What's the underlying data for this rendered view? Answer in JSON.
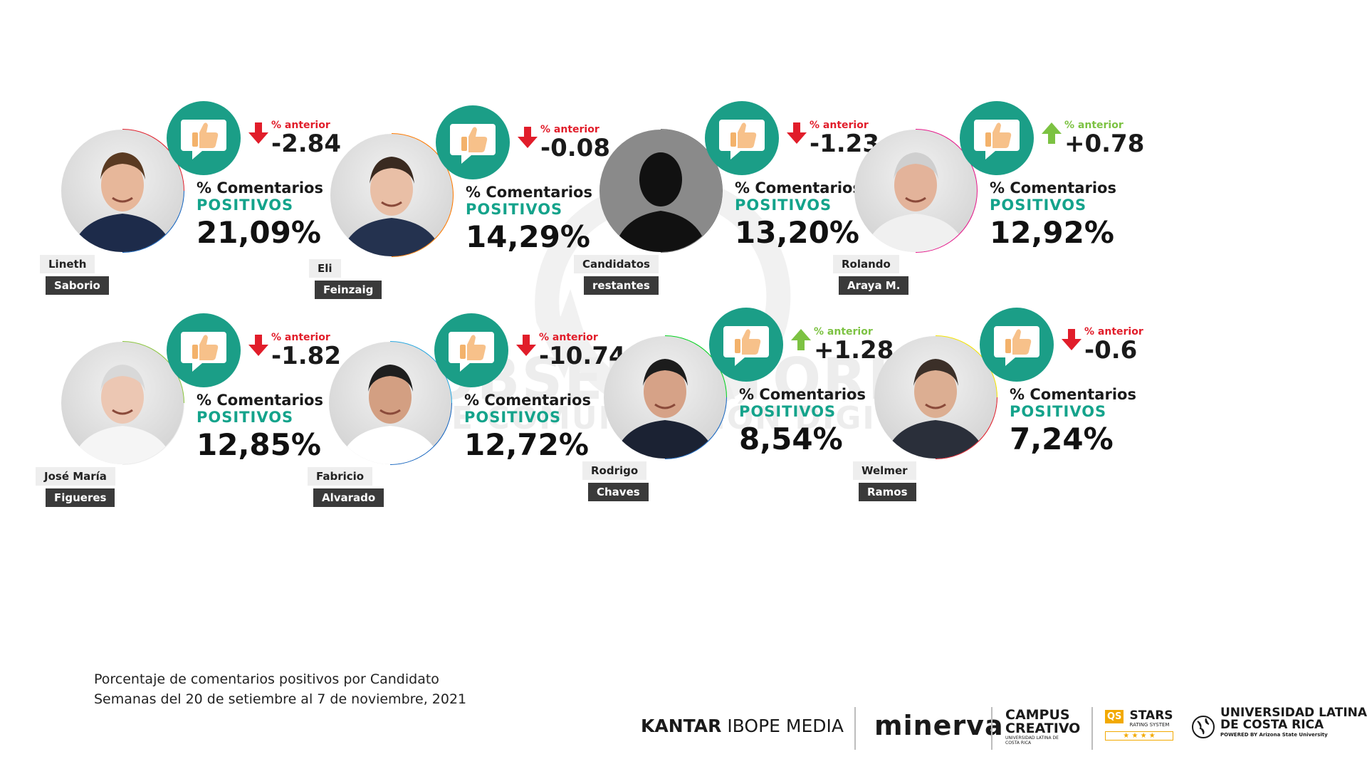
{
  "watermark": {
    "line1": "OBSERVATORIO",
    "line2": "DE COMUNICACIÓN DIGITAL"
  },
  "labels": {
    "delta_label": "% anterior",
    "stat_line1": "% Comentarios",
    "stat_line2": "POSITIVOS"
  },
  "colors": {
    "teal": "#1b9e87",
    "down": "#e11d2a",
    "up": "#7cc242",
    "positive_text": "#14a38b"
  },
  "chart_data": {
    "type": "table",
    "metric": "% Comentarios POSITIVOS",
    "categories": [
      "Lineth Saborio",
      "Eli Feinzaig",
      "Candidatos restantes",
      "Rolando Araya M.",
      "José María Figueres",
      "Fabricio Alvarado",
      "Rodrigo Chaves",
      "Welmer Ramos"
    ],
    "series": [
      {
        "name": "% Comentarios POSITIVOS",
        "values": [
          21.09,
          14.29,
          13.2,
          12.92,
          12.85,
          12.72,
          8.54,
          7.24
        ]
      },
      {
        "name": "% anterior",
        "values": [
          -2.84,
          -0.08,
          -1.23,
          0.78,
          -1.82,
          -10.74,
          1.28,
          -0.6
        ]
      }
    ]
  },
  "candidates": [
    {
      "first": "Lineth",
      "last": "Saborio",
      "positive": "21,09%",
      "delta": "-2.84",
      "direction": "down",
      "ring": [
        "#e11d2a",
        "#1565c0"
      ],
      "silhouette": false
    },
    {
      "first": "Eli",
      "last": "Feinzaig",
      "positive": "14,29%",
      "delta": "-0.08",
      "direction": "down",
      "ring": [
        "#ff7a00",
        "#ff7a00"
      ],
      "silhouette": false
    },
    {
      "first": "Candidatos",
      "last": "restantes",
      "positive": "13,20%",
      "delta": "-1.23",
      "direction": "down",
      "ring": [
        "#7a7a7a",
        "#7a7a7a"
      ],
      "silhouette": true
    },
    {
      "first": "Rolando",
      "last": "Araya M.",
      "positive": "12,92%",
      "delta": "+0.78",
      "direction": "up",
      "ring": [
        "#e6168a",
        "#e6168a"
      ],
      "silhouette": false
    },
    {
      "first": "José María",
      "last": "Figueres",
      "positive": "12,85%",
      "delta": "-1.82",
      "direction": "down",
      "ring": [
        "#8cc63f",
        "#eeeeee"
      ],
      "silhouette": false
    },
    {
      "first": "Fabricio",
      "last": "Alvarado",
      "positive": "12,72%",
      "delta": "-10.74",
      "direction": "down",
      "ring": [
        "#29a8e0",
        "#1565c0"
      ],
      "silhouette": false
    },
    {
      "first": "Rodrigo",
      "last": "Chaves",
      "positive": "8,54%",
      "delta": "+1.28",
      "direction": "up",
      "ring": [
        "#00d21c",
        "#1565c0"
      ],
      "silhouette": false
    },
    {
      "first": "Welmer",
      "last": "Ramos",
      "positive": "7,24%",
      "delta": "-0.6",
      "direction": "down",
      "ring": [
        "#f5e400",
        "#e11d2a"
      ],
      "silhouette": false
    }
  ],
  "caption": {
    "line1": "Porcentaje de comentarios positivos por Candidato",
    "line2": "Semanas del 20 de setiembre al 7 de noviembre, 2021"
  },
  "logos": {
    "kantar_bold": "KANTAR",
    "kantar_rest": "IBOPE MEDIA",
    "minerva": "minerva",
    "campus_line1": "CAMPUS",
    "campus_line2": "CREATIVO",
    "campus_small": "UNIVERSIDAD LATINA DE COSTA RICA",
    "qs_badge": "QS",
    "qs_stars": "STARS",
    "qs_small": "RATING SYSTEM",
    "qs_rating": "★ ★ ★ ★",
    "ulatina_line1": "UNIVERSIDAD LATINA",
    "ulatina_line2": "DE COSTA RICA",
    "ulatina_small": "POWERED BY Arizona State University"
  }
}
